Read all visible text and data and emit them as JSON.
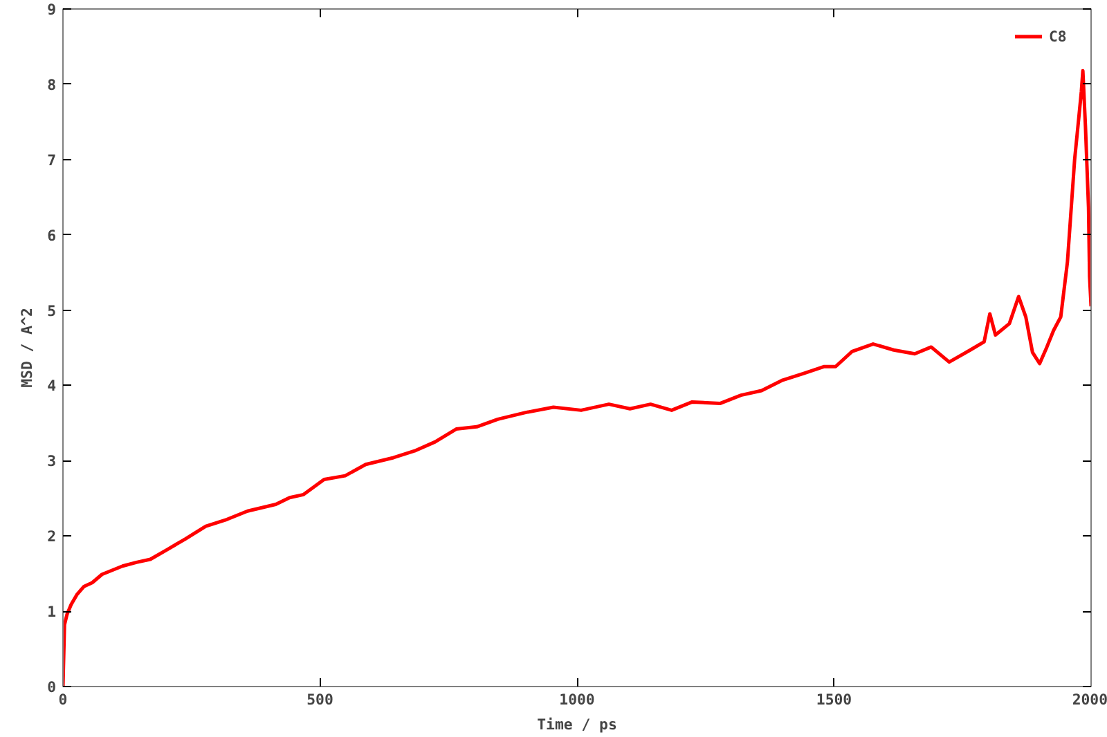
{
  "chart_data": {
    "type": "line",
    "xlabel": "Time / ps",
    "ylabel": "MSD / A^2",
    "legend": "top right",
    "grid": false,
    "marker": "none",
    "line_style": "solid",
    "xlim": [
      0,
      2000
    ],
    "ylim": [
      0,
      9
    ],
    "xticks": [
      0,
      500,
      1000,
      1500,
      2000
    ],
    "yticks": [
      0,
      1,
      2,
      3,
      4,
      5,
      6,
      7,
      8,
      9
    ],
    "series": [
      {
        "name": "C8",
        "color": "#ff0000",
        "x": [
          0,
          3,
          8,
          16,
          27,
          41,
          57,
          76,
          116,
          143,
          170,
          203,
          238,
          278,
          319,
          359,
          414,
          441,
          468,
          508,
          549,
          589,
          643,
          684,
          724,
          765,
          805,
          846,
          900,
          954,
          1008,
          1062,
          1103,
          1143,
          1184,
          1224,
          1278,
          1319,
          1359,
          1400,
          1441,
          1481,
          1503,
          1535,
          1576,
          1616,
          1657,
          1689,
          1724,
          1765,
          1792,
          1803,
          1814,
          1841,
          1859,
          1873,
          1886,
          1900,
          1914,
          1927,
          1941,
          1954,
          1968,
          1976,
          1981,
          1984,
          1989,
          1995,
          1997,
          2000
        ],
        "values": [
          0,
          0.82,
          0.96,
          1.09,
          1.22,
          1.33,
          1.38,
          1.49,
          1.6,
          1.65,
          1.69,
          1.82,
          1.96,
          2.13,
          2.22,
          2.33,
          2.42,
          2.51,
          2.55,
          2.75,
          2.8,
          2.95,
          3.04,
          3.13,
          3.25,
          3.42,
          3.45,
          3.55,
          3.64,
          3.71,
          3.67,
          3.75,
          3.69,
          3.75,
          3.67,
          3.78,
          3.76,
          3.87,
          3.93,
          4.07,
          4.16,
          4.25,
          4.25,
          4.45,
          4.55,
          4.47,
          4.42,
          4.51,
          4.31,
          4.47,
          4.58,
          4.95,
          4.67,
          4.82,
          5.18,
          4.91,
          4.44,
          4.29,
          4.51,
          4.73,
          4.91,
          5.64,
          7.0,
          7.55,
          7.9,
          8.18,
          7.45,
          6.36,
          5.45,
          5.05
        ]
      }
    ]
  }
}
